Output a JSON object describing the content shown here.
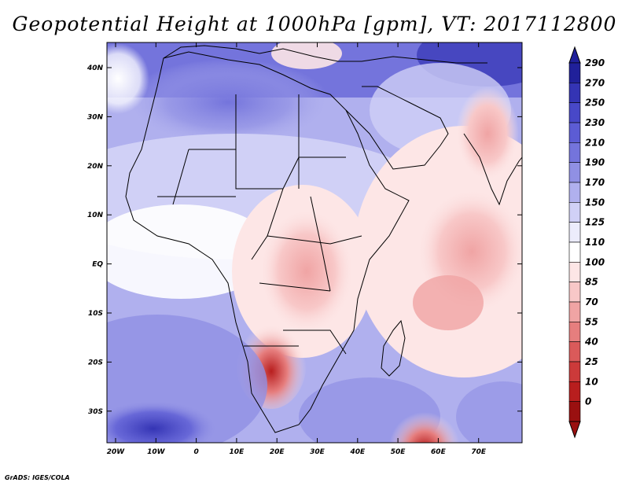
{
  "title": "Geopotential Height at 1000hPa [gpm], VT: 2017112800",
  "credit": "GrADS: IGES/COLA",
  "x_axis_labels": [
    "20W",
    "10W",
    "0",
    "10E",
    "20E",
    "30E",
    "40E",
    "50E",
    "60E",
    "70E"
  ],
  "y_axis_labels": [
    "40N",
    "30N",
    "20N",
    "10N",
    "EQ",
    "10S",
    "20S",
    "30S"
  ],
  "colorbar": {
    "labels": [
      "290",
      "270",
      "250",
      "230",
      "210",
      "190",
      "170",
      "150",
      "125",
      "110",
      "100",
      "85",
      "70",
      "55",
      "40",
      "25",
      "10",
      "0"
    ],
    "colors": [
      "#20209a",
      "#3434b4",
      "#4848c8",
      "#5c5cd4",
      "#7474dc",
      "#9090e4",
      "#b0b0ee",
      "#d0d0f6",
      "#ececfc",
      "#ffffff",
      "#fde6e6",
      "#f8c8c8",
      "#f0a4a4",
      "#e67e7e",
      "#da5a5a",
      "#cc3a3a",
      "#b81e1e",
      "#9a1010"
    ]
  }
}
